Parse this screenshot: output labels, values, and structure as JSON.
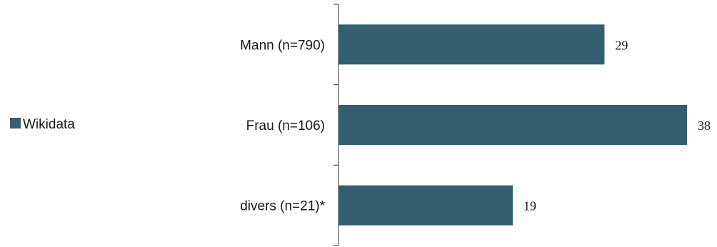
{
  "chart_data": {
    "type": "bar",
    "orientation": "horizontal",
    "categories": [
      "Mann (n=790)",
      "Frau (n=106)",
      "divers (n=21)*"
    ],
    "series": [
      {
        "name": "Wikidata",
        "values": [
          29,
          38,
          19
        ],
        "color": "#335f70"
      }
    ],
    "xlim": [
      0,
      38
    ],
    "grid": false,
    "legend": "left"
  }
}
